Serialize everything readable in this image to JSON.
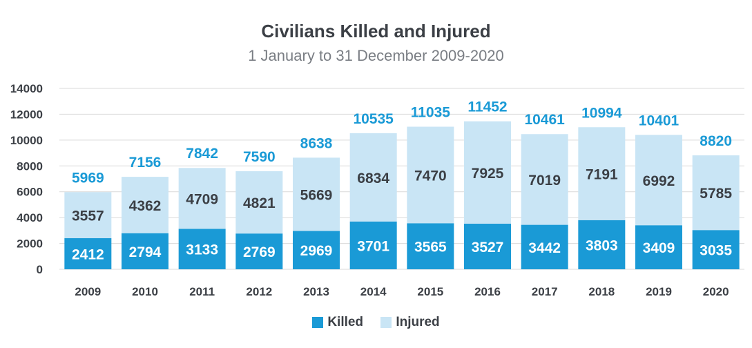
{
  "chart_data": {
    "type": "bar",
    "stacked": true,
    "title": "Civilians Killed and Injured",
    "subtitle": "1 January to 31 December 2009-2020",
    "categories": [
      "2009",
      "2010",
      "2011",
      "2012",
      "2013",
      "2014",
      "2015",
      "2016",
      "2017",
      "2018",
      "2019",
      "2020"
    ],
    "series": [
      {
        "name": "Killed",
        "color": "#1a9ad6",
        "values": [
          2412,
          2794,
          3133,
          2769,
          2969,
          3701,
          3565,
          3527,
          3442,
          3803,
          3409,
          3035
        ]
      },
      {
        "name": "Injured",
        "color": "#c9e5f5",
        "values": [
          3557,
          4362,
          4709,
          4821,
          5669,
          6834,
          7470,
          7925,
          7019,
          7191,
          6992,
          5785
        ]
      }
    ],
    "totals": [
      5969,
      7156,
      7842,
      7590,
      8638,
      10535,
      11035,
      11452,
      10461,
      10994,
      10401,
      8820
    ],
    "ylim": [
      0,
      14000
    ],
    "yticks": [
      0,
      2000,
      4000,
      6000,
      8000,
      10000,
      12000,
      14000
    ],
    "grid": true,
    "legend": "bottom-center",
    "xlabel": "",
    "ylabel": "",
    "colors": {
      "total_label": "#1a9ad6",
      "injured_label": "#3b3f45",
      "killed_label": "#ffffff",
      "grid": "#d9d9d9",
      "axis_text": "#3b3f45"
    }
  }
}
